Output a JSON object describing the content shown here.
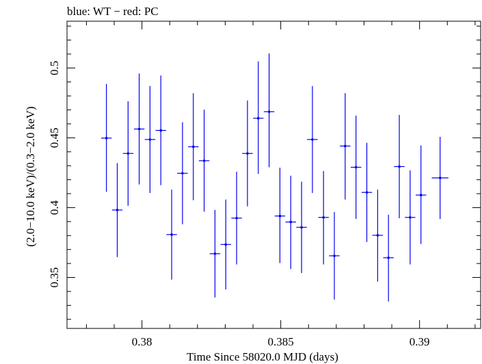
{
  "chart_data": {
    "type": "scatter",
    "title": "blue: WT − red: PC",
    "xlabel": "Time Since 58020.0 MJD (days)",
    "ylabel": "(2.0−10.0 keV)/(0.3−2.0 keV)",
    "xlim": [
      0.3773,
      0.3922
    ],
    "ylim": [
      0.3135,
      0.5335
    ],
    "x_ticks": [
      {
        "value": 0.38,
        "label": "0.38"
      },
      {
        "value": 0.385,
        "label": "0.385"
      },
      {
        "value": 0.39,
        "label": "0.39"
      }
    ],
    "y_ticks": [
      {
        "value": 0.35,
        "label": "0.35"
      },
      {
        "value": 0.4,
        "label": "0.4"
      },
      {
        "value": 0.45,
        "label": "0.45"
      },
      {
        "value": 0.5,
        "label": "0.5"
      }
    ],
    "x_minor_step": 0.001,
    "y_minor_step": 0.01,
    "grid": false,
    "series": [
      {
        "color": "#0000ee",
        "points": [
          {
            "x": 0.37872,
            "xerr": 0.00019,
            "y": 0.4498,
            "yerr_low": 0.0385,
            "yerr_high": 0.0388
          },
          {
            "x": 0.37911,
            "xerr": 0.00019,
            "y": 0.3983,
            "yerr_low": 0.0337,
            "yerr_high": 0.0336
          },
          {
            "x": 0.3795,
            "xerr": 0.00019,
            "y": 0.4388,
            "yerr_low": 0.0375,
            "yerr_high": 0.0374
          },
          {
            "x": 0.3799,
            "xerr": 0.00019,
            "y": 0.4563,
            "yerr_low": 0.0397,
            "yerr_high": 0.0398
          },
          {
            "x": 0.38029,
            "xerr": 0.00019,
            "y": 0.4488,
            "yerr_low": 0.0383,
            "yerr_high": 0.0383
          },
          {
            "x": 0.38068,
            "xerr": 0.00019,
            "y": 0.4553,
            "yerr_low": 0.0392,
            "yerr_high": 0.0393
          },
          {
            "x": 0.38107,
            "xerr": 0.00019,
            "y": 0.3807,
            "yerr_low": 0.0322,
            "yerr_high": 0.0322
          },
          {
            "x": 0.38146,
            "xerr": 0.00019,
            "y": 0.4246,
            "yerr_low": 0.0365,
            "yerr_high": 0.0365
          },
          {
            "x": 0.38185,
            "xerr": 0.00019,
            "y": 0.4436,
            "yerr_low": 0.0383,
            "yerr_high": 0.0383
          },
          {
            "x": 0.38224,
            "xerr": 0.00019,
            "y": 0.4336,
            "yerr_low": 0.0365,
            "yerr_high": 0.0365
          },
          {
            "x": 0.38263,
            "xerr": 0.00019,
            "y": 0.367,
            "yerr_low": 0.0313,
            "yerr_high": 0.0313
          },
          {
            "x": 0.38302,
            "xerr": 0.00019,
            "y": 0.3736,
            "yerr_low": 0.0322,
            "yerr_high": 0.0322
          },
          {
            "x": 0.38341,
            "xerr": 0.00019,
            "y": 0.3925,
            "yerr_low": 0.0332,
            "yerr_high": 0.0332
          },
          {
            "x": 0.3838,
            "xerr": 0.00019,
            "y": 0.4388,
            "yerr_low": 0.0379,
            "yerr_high": 0.0379
          },
          {
            "x": 0.38419,
            "xerr": 0.00019,
            "y": 0.464,
            "yerr_low": 0.0398,
            "yerr_high": 0.0407
          },
          {
            "x": 0.38458,
            "xerr": 0.00019,
            "y": 0.4687,
            "yerr_low": 0.0398,
            "yerr_high": 0.0417
          },
          {
            "x": 0.38497,
            "xerr": 0.00019,
            "y": 0.394,
            "yerr_low": 0.0337,
            "yerr_high": 0.0346
          },
          {
            "x": 0.38536,
            "xerr": 0.00019,
            "y": 0.3897,
            "yerr_low": 0.0337,
            "yerr_high": 0.0332
          },
          {
            "x": 0.38575,
            "xerr": 0.00019,
            "y": 0.3859,
            "yerr_low": 0.0327,
            "yerr_high": 0.0327
          },
          {
            "x": 0.38614,
            "xerr": 0.00019,
            "y": 0.4488,
            "yerr_low": 0.0383,
            "yerr_high": 0.0383
          },
          {
            "x": 0.38654,
            "xerr": 0.00019,
            "y": 0.393,
            "yerr_low": 0.0337,
            "yerr_high": 0.0332
          },
          {
            "x": 0.38693,
            "xerr": 0.00019,
            "y": 0.3655,
            "yerr_low": 0.0313,
            "yerr_high": 0.0313
          },
          {
            "x": 0.38732,
            "xerr": 0.00019,
            "y": 0.4441,
            "yerr_low": 0.0383,
            "yerr_high": 0.0379
          },
          {
            "x": 0.38771,
            "xerr": 0.00019,
            "y": 0.4289,
            "yerr_low": 0.037,
            "yerr_high": 0.037
          },
          {
            "x": 0.3881,
            "xerr": 0.00019,
            "y": 0.4109,
            "yerr_low": 0.0355,
            "yerr_high": 0.0355
          },
          {
            "x": 0.38849,
            "xerr": 0.00019,
            "y": 0.3802,
            "yerr_low": 0.0332,
            "yerr_high": 0.0327
          },
          {
            "x": 0.38888,
            "xerr": 0.00019,
            "y": 0.3641,
            "yerr_low": 0.0313,
            "yerr_high": 0.0308
          },
          {
            "x": 0.38927,
            "xerr": 0.00019,
            "y": 0.4294,
            "yerr_low": 0.037,
            "yerr_high": 0.037
          },
          {
            "x": 0.38966,
            "xerr": 0.00019,
            "y": 0.393,
            "yerr_low": 0.0337,
            "yerr_high": 0.0337
          },
          {
            "x": 0.39005,
            "xerr": 0.00019,
            "y": 0.409,
            "yerr_low": 0.035,
            "yerr_high": 0.0355
          },
          {
            "x": 0.39074,
            "xerr": 0.0003,
            "y": 0.4213,
            "yerr_low": 0.0294,
            "yerr_high": 0.0294
          }
        ]
      }
    ]
  }
}
